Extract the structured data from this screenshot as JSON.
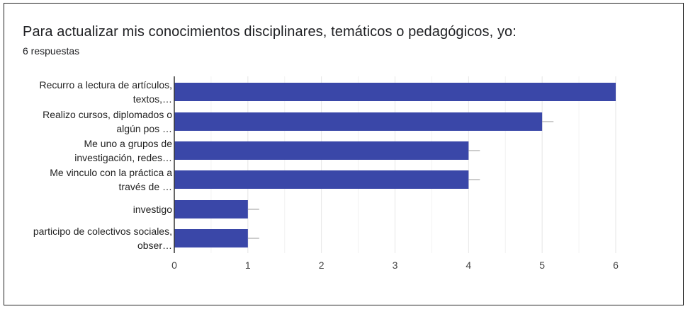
{
  "header": {
    "title": "Para actualizar mis conocimientos disciplinares, temáticos o pedagógicos, yo:",
    "subtitle": "6 respuestas"
  },
  "colors": {
    "bar": "#3a47a8",
    "grid": "#e6e6e6",
    "axis": "#333333",
    "errorbar": "#999999"
  },
  "chart_data": {
    "type": "bar",
    "orientation": "horizontal",
    "categories": [
      [
        "Recurro a lectura de artículos,",
        "textos,…"
      ],
      [
        "Realizo cursos, diplomados o",
        "algún pos …"
      ],
      [
        "Me uno a grupos de",
        "investigación, redes…"
      ],
      [
        "Me vinculo con la práctica a",
        "través de …"
      ],
      [
        "investigo"
      ],
      [
        "participo de colectivos sociales,",
        "obser…"
      ]
    ],
    "values": [
      6,
      5,
      4,
      4,
      1,
      1
    ],
    "xlim": [
      0,
      6
    ],
    "xticks": [
      0,
      1,
      2,
      3,
      4,
      5,
      6
    ],
    "grid": true
  }
}
